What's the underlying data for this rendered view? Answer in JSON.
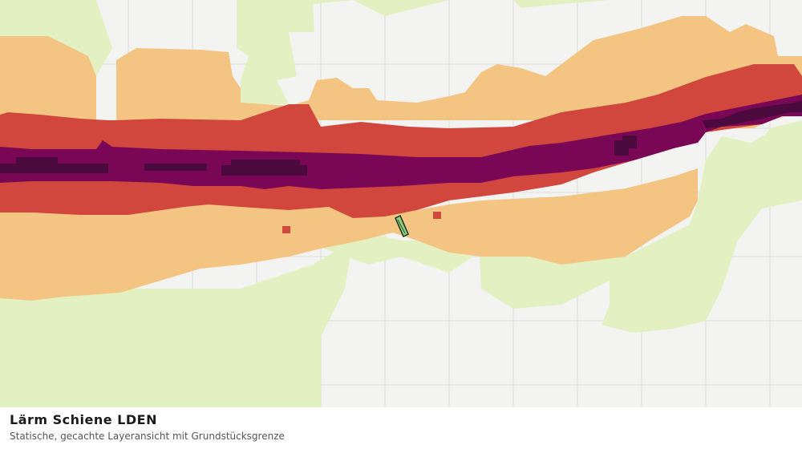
{
  "map": {
    "layer": "Lärm Schiene LDEN",
    "colors": {
      "background": "#f3f4f2",
      "grid": "#dcdedb",
      "noise_low": "#e3f0c1",
      "noise_medium": "#f4c482",
      "noise_high": "#d1473d",
      "noise_very_high": "#7a0756",
      "noise_extreme": "#4a0a3e",
      "parcel_fill": "#8fcf7f",
      "parcel_stroke": "#143114"
    },
    "parcel": "Grundstücksgrenze"
  },
  "caption": {
    "title": "Lärm Schiene LDEN",
    "subtitle": "Statische, gecachte Layeransicht mit Grundstücksgrenze"
  }
}
